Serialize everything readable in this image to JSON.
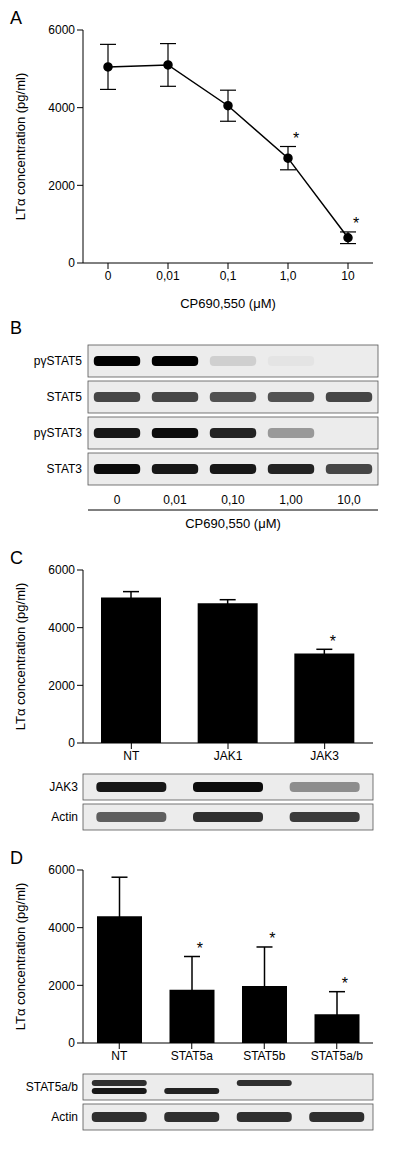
{
  "chart_data": [
    {
      "type": "line",
      "title": "A",
      "x_label": "CP690,550 (μM)",
      "y_label": "LTα concentration (pg/ml)",
      "categories": [
        "0",
        "0,01",
        "0,1",
        "1,0",
        "10"
      ],
      "values": [
        5050,
        5100,
        4050,
        2700,
        650
      ],
      "errors": [
        580,
        550,
        400,
        300,
        150
      ],
      "significance": [
        null,
        null,
        null,
        "*",
        "*"
      ],
      "ylim": [
        0,
        6000
      ],
      "yticks": [
        0,
        2000,
        4000,
        6000
      ],
      "color": "#000000",
      "marker": "circle"
    },
    {
      "type": "blot",
      "title": "B",
      "x_label": "CP690,550 (μM)",
      "lanes": [
        "0",
        "0,01",
        "0,10",
        "1,00",
        "10,0"
      ],
      "rows": [
        {
          "label": "pγSTAT5",
          "bands": [
            1,
            1,
            0.12,
            0.03,
            0
          ]
        },
        {
          "label": "STAT5",
          "bands": [
            0.7,
            0.7,
            0.65,
            0.65,
            0.7
          ]
        },
        {
          "label": "pγSTAT3",
          "bands": [
            0.9,
            0.95,
            0.85,
            0.35,
            0
          ]
        },
        {
          "label": "STAT3",
          "bands": [
            0.95,
            0.9,
            0.9,
            0.85,
            0.7
          ]
        }
      ]
    },
    {
      "type": "bar",
      "title": "C",
      "y_label": "LTα concentration (pg/ml)",
      "categories": [
        "NT",
        "JAK1",
        "JAK3"
      ],
      "values": [
        5050,
        4850,
        3100
      ],
      "errors": [
        200,
        120,
        150
      ],
      "significance": [
        null,
        null,
        "*"
      ],
      "ylim": [
        0,
        6000
      ],
      "yticks": [
        0,
        2000,
        4000,
        6000
      ],
      "color": "#000000",
      "blot": {
        "rows": [
          {
            "label": "JAK3",
            "bands": [
              0.9,
              0.95,
              0.4
            ]
          },
          {
            "label": "Actin",
            "bands": [
              0.6,
              0.8,
              0.75
            ]
          }
        ]
      }
    },
    {
      "type": "bar",
      "title": "D",
      "y_label": "LTα concentration (pg/ml)",
      "categories": [
        "NT",
        "STAT5a",
        "STAT5b",
        "STAT5a/b"
      ],
      "values": [
        4400,
        1850,
        1980,
        1000
      ],
      "errors": [
        1350,
        1150,
        1350,
        780
      ],
      "significance": [
        null,
        "*",
        "*",
        "*"
      ],
      "ylim": [
        0,
        6000
      ],
      "yticks": [
        0,
        2000,
        4000,
        6000
      ],
      "color": "#000000",
      "blot": {
        "rows": [
          {
            "label": "STAT5a/b",
            "bands": [
              [
                0.8,
                0.9
              ],
              [
                0,
                0.85
              ],
              [
                0.8,
                0
              ],
              [
                0,
                0
              ]
            ]
          },
          {
            "label": "Actin",
            "bands": [
              0.8,
              0.8,
              0.8,
              0.8
            ]
          }
        ]
      }
    }
  ]
}
